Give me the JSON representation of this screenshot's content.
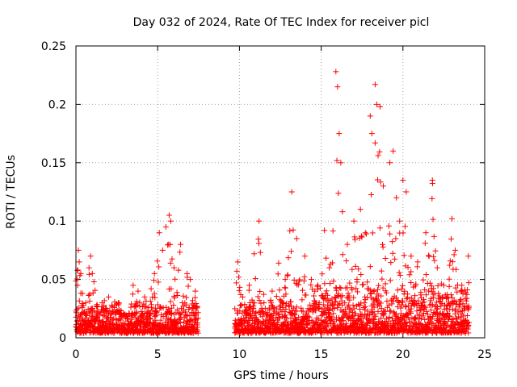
{
  "chart_data": {
    "type": "scatter",
    "title": "Day 032 of 2024, Rate Of TEC Index for receiver picl",
    "xlabel": "GPS time / hours",
    "ylabel": "ROTI / TECUs",
    "xlim": [
      0,
      25
    ],
    "ylim": [
      0,
      0.25
    ],
    "x_ticks": [
      0,
      5,
      10,
      15,
      20,
      25
    ],
    "x_tick_labels": [
      "0",
      "5",
      "10",
      "15",
      "20",
      "25"
    ],
    "y_ticks": [
      0,
      0.05,
      0.1,
      0.15,
      0.2,
      0.25
    ],
    "y_tick_labels": [
      "0",
      "0.05",
      "0.1",
      "0.15",
      "0.2",
      "0.25"
    ],
    "grid": true,
    "marker": "+",
    "color": "#ff0000",
    "data_gap_hours": [
      7.5,
      9.7
    ],
    "series": [
      {
        "name": "ROTI",
        "points": [
          [
            0.1,
            0.045
          ],
          [
            0.15,
            0.075
          ],
          [
            0.2,
            0.065
          ],
          [
            0.3,
            0.055
          ],
          [
            0.4,
            0.038
          ],
          [
            0.6,
            0.03
          ],
          [
            0.8,
            0.06
          ],
          [
            0.9,
            0.07
          ],
          [
            1.0,
            0.055
          ],
          [
            1.1,
            0.048
          ],
          [
            1.3,
            0.022
          ],
          [
            1.6,
            0.03
          ],
          [
            1.8,
            0.025
          ],
          [
            2.0,
            0.035
          ],
          [
            2.2,
            0.028
          ],
          [
            2.6,
            0.03
          ],
          [
            3.0,
            0.02
          ],
          [
            3.5,
            0.045
          ],
          [
            3.8,
            0.04
          ],
          [
            4.2,
            0.035
          ],
          [
            4.6,
            0.042
          ],
          [
            4.8,
            0.055
          ],
          [
            5.1,
            0.09
          ],
          [
            5.3,
            0.075
          ],
          [
            5.5,
            0.095
          ],
          [
            5.7,
            0.105
          ],
          [
            5.8,
            0.1
          ],
          [
            6.0,
            0.06
          ],
          [
            6.4,
            0.08
          ],
          [
            6.8,
            0.055
          ],
          [
            7.0,
            0.05
          ],
          [
            7.3,
            0.04
          ],
          [
            9.9,
            0.065
          ],
          [
            10.2,
            0.035
          ],
          [
            10.6,
            0.045
          ],
          [
            10.9,
            0.072
          ],
          [
            11.2,
            0.1
          ],
          [
            11.5,
            0.03
          ],
          [
            12.0,
            0.04
          ],
          [
            12.4,
            0.064
          ],
          [
            12.8,
            0.05
          ],
          [
            13.2,
            0.125
          ],
          [
            13.5,
            0.085
          ],
          [
            14.0,
            0.07
          ],
          [
            14.4,
            0.05
          ],
          [
            14.8,
            0.045
          ],
          [
            15.2,
            0.092
          ],
          [
            15.5,
            0.06
          ],
          [
            15.9,
            0.228
          ],
          [
            16.0,
            0.215
          ],
          [
            16.1,
            0.175
          ],
          [
            16.2,
            0.15
          ],
          [
            16.3,
            0.108
          ],
          [
            16.6,
            0.08
          ],
          [
            17.0,
            0.1
          ],
          [
            17.4,
            0.11
          ],
          [
            17.7,
            0.09
          ],
          [
            18.0,
            0.19
          ],
          [
            18.1,
            0.175
          ],
          [
            18.3,
            0.217
          ],
          [
            18.4,
            0.2
          ],
          [
            18.6,
            0.198
          ],
          [
            18.8,
            0.13
          ],
          [
            19.2,
            0.15
          ],
          [
            19.4,
            0.16
          ],
          [
            19.6,
            0.12
          ],
          [
            19.8,
            0.1
          ],
          [
            20.0,
            0.135
          ],
          [
            20.2,
            0.125
          ],
          [
            20.5,
            0.07
          ],
          [
            20.9,
            0.065
          ],
          [
            21.4,
            0.09
          ],
          [
            21.8,
            0.135
          ],
          [
            22.1,
            0.06
          ],
          [
            22.5,
            0.045
          ],
          [
            23.0,
            0.102
          ],
          [
            23.2,
            0.075
          ],
          [
            23.6,
            0.045
          ],
          [
            24.0,
            0.07
          ]
        ]
      }
    ]
  }
}
